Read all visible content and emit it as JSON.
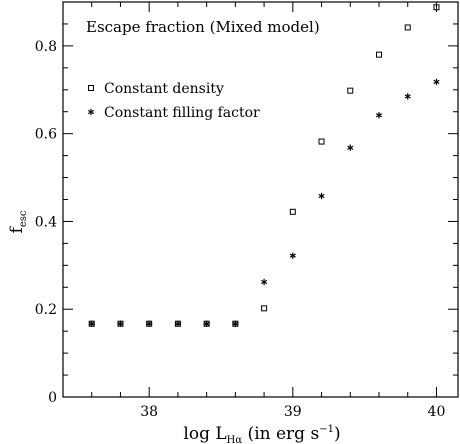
{
  "chart_data": {
    "type": "scatter",
    "title": "Escape fraction (Mixed model)",
    "xlabel": {
      "prefix": "log L",
      "subscript": "Hα",
      "suffix": " (in erg s",
      "superscript": "−1",
      "close": ")"
    },
    "ylabel": {
      "main": "f",
      "subscript": "esc"
    },
    "xlim": [
      37.4,
      40.15
    ],
    "ylim": [
      0,
      0.9
    ],
    "x_ticks": [
      38,
      39,
      40
    ],
    "x_tick_labels": [
      "38",
      "39",
      "40"
    ],
    "y_ticks": [
      0,
      0.2,
      0.4,
      0.6,
      0.8
    ],
    "y_tick_labels": [
      "0",
      "0.2",
      "0.4",
      "0.6",
      "0.8"
    ],
    "grid": false,
    "legend_position": "top-left",
    "series": [
      {
        "name": "Constant density",
        "marker": "square",
        "x": [
          37.6,
          37.8,
          38.0,
          38.2,
          38.4,
          38.6,
          38.8,
          39.0,
          39.2,
          39.4,
          39.6,
          39.8,
          40.0
        ],
        "y": [
          0.167,
          0.167,
          0.167,
          0.167,
          0.167,
          0.167,
          0.202,
          0.422,
          0.582,
          0.698,
          0.78,
          0.842,
          0.888
        ]
      },
      {
        "name": "Constant filling factor",
        "marker": "asterisk",
        "x": [
          37.6,
          37.8,
          38.0,
          38.2,
          38.4,
          38.6,
          38.8,
          39.0,
          39.2,
          39.4,
          39.6,
          39.8,
          40.0
        ],
        "y": [
          0.167,
          0.167,
          0.167,
          0.167,
          0.167,
          0.167,
          0.262,
          0.322,
          0.458,
          0.568,
          0.642,
          0.685,
          0.718
        ]
      }
    ]
  }
}
